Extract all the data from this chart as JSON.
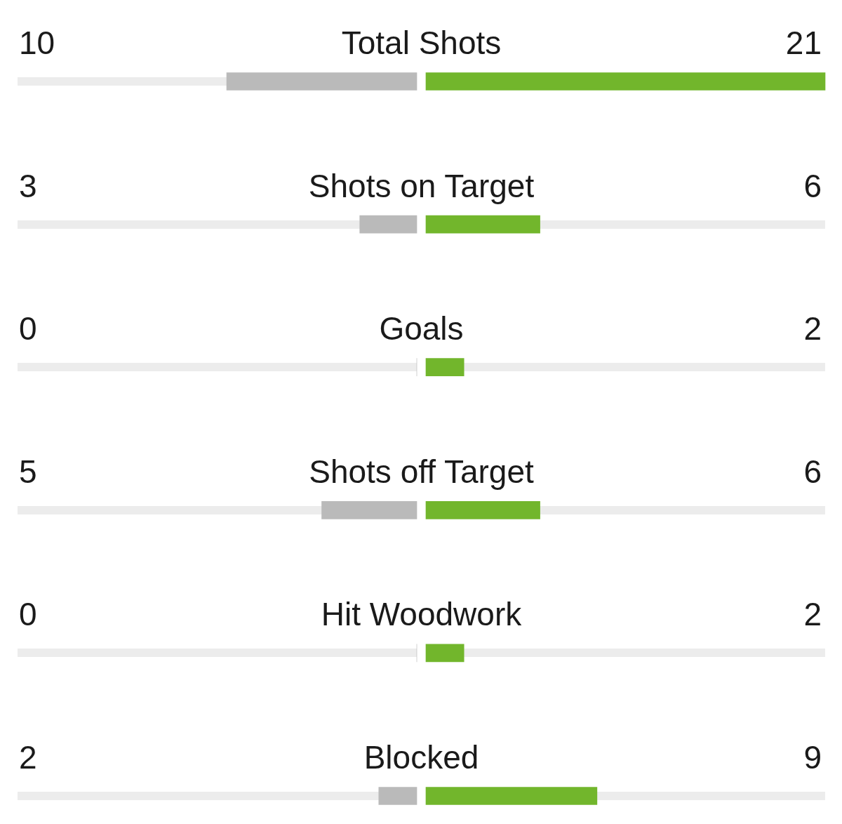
{
  "chart_data": [
    {
      "type": "bar",
      "orientation": "horizontal",
      "categories": [
        "Total Shots",
        "Shots on Target",
        "Goals",
        "Shots off Target",
        "Hit Woodwork",
        "Blocked"
      ],
      "values": [
        10,
        3,
        0,
        5,
        0,
        2
      ],
      "value_labels": [
        "10",
        "3",
        "0",
        "5",
        "0",
        "2"
      ],
      "color": "#bababa",
      "xlim": [
        21,
        0
      ],
      "grid": "y",
      "tick_labels": "y"
    },
    {
      "type": "bar",
      "orientation": "horizontal",
      "categories": [
        null,
        null,
        null,
        null,
        null,
        null
      ],
      "values": [
        21,
        6,
        2,
        6,
        2,
        9
      ],
      "color": "#72b62c",
      "xlim": [
        0,
        21
      ],
      "data_labels": true,
      "grid": "y",
      "tick_labels": false
    }
  ]
}
